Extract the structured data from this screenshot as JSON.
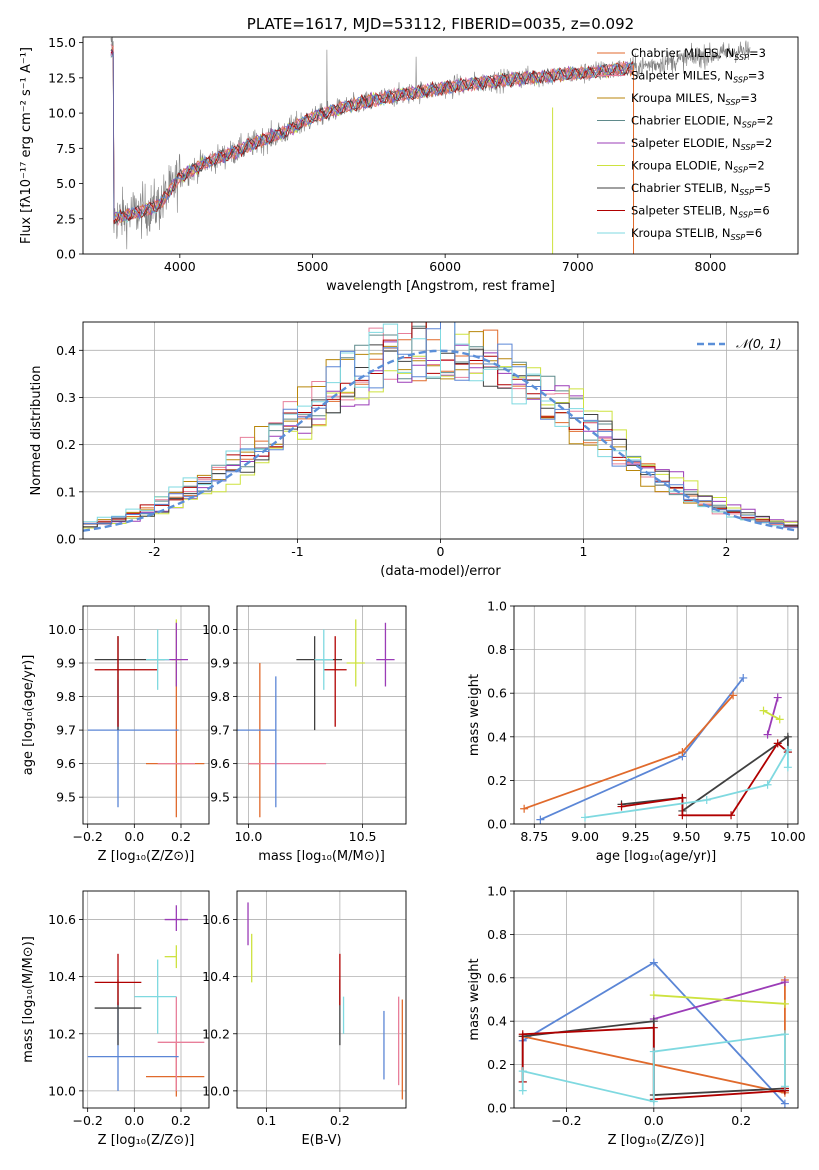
{
  "colors": {
    "chabrier_miles": "#e06a2c",
    "salpeter_miles": "#e87f9a",
    "kroupa_miles": "#b8860b",
    "chabrier_elodie": "#5f8a8b",
    "salpeter_elodie": "#9b3cb7",
    "kroupa_elodie": "#cde23f",
    "chabrier_stelib": "#404040",
    "salpeter_stelib": "#b00000",
    "kroupa_stelib": "#7fd9e0",
    "model_blue": "#5b86d6",
    "normal_curve": "#5b8fd8",
    "spectrum": "#808080",
    "grid": "#b0b0b0"
  },
  "chart_data": [
    {
      "id": "spectrum",
      "type": "line",
      "title": "PLATE=1617, MJD=53112, FIBERID=0035, z=0.092",
      "xlabel": "wavelength [Angstrom, rest frame]",
      "ylabel": "Flux [fλ10⁻¹⁷ erg cm⁻² s⁻¹ A⁻¹]",
      "xlim": [
        3270,
        8660
      ],
      "ylim": [
        0,
        15.4
      ],
      "xticks": [
        4000,
        5000,
        6000,
        7000,
        8000
      ],
      "yticks": [
        0.0,
        2.5,
        5.0,
        7.5,
        10.0,
        12.5,
        15.0
      ],
      "ytick_labels": [
        "0.0",
        "2.5",
        "5.0",
        "7.5",
        "10.0",
        "12.5",
        "15.0"
      ],
      "grid": false,
      "legend_position": "bottom-right",
      "legend": [
        {
          "label": "Chabrier MILES, N",
          "sub": "SSP",
          "suffix": "=3",
          "color_key": "chabrier_miles"
        },
        {
          "label": "Salpeter MILES, N",
          "sub": "SSP",
          "suffix": "=3",
          "color_key": "salpeter_miles"
        },
        {
          "label": "Kroupa MILES, N",
          "sub": "SSP",
          "suffix": "=3",
          "color_key": "kroupa_miles"
        },
        {
          "label": "Chabrier ELODIE, N",
          "sub": "SSP",
          "suffix": "=2",
          "color_key": "chabrier_elodie"
        },
        {
          "label": "Salpeter ELODIE, N",
          "sub": "SSP",
          "suffix": "=2",
          "color_key": "salpeter_elodie"
        },
        {
          "label": "Kroupa ELODIE, N",
          "sub": "SSP",
          "suffix": "=2",
          "color_key": "kroupa_elodie"
        },
        {
          "label": "Chabrier STELIB, N",
          "sub": "SSP",
          "suffix": "=5",
          "color_key": "chabrier_stelib"
        },
        {
          "label": "Salpeter STELIB, N",
          "sub": "SSP",
          "suffix": "=6",
          "color_key": "salpeter_stelib"
        },
        {
          "label": "Kroupa STELIB, N",
          "sub": "SSP",
          "suffix": "=6",
          "color_key": "kroupa_stelib"
        }
      ],
      "continuum": {
        "x": [
          3500,
          3700,
          3850,
          4000,
          4200,
          4400,
          4600,
          4800,
          5000,
          5200,
          5500,
          5800,
          6000,
          6300,
          6600,
          7000,
          7400,
          7800,
          8200
        ],
        "y": [
          2.5,
          3.0,
          3.5,
          5.5,
          6.5,
          7.2,
          8.0,
          8.7,
          9.7,
          10.3,
          11.0,
          11.5,
          11.8,
          12.2,
          12.5,
          12.8,
          13.2,
          13.8,
          14.4
        ]
      },
      "spectrum_range": [
        3480,
        8300
      ],
      "model_range": [
        3480,
        7420
      ]
    },
    {
      "id": "residuals",
      "type": "line",
      "xlabel": "(data-model)/error",
      "ylabel": "Normed distribution",
      "xlim": [
        -2.5,
        2.5
      ],
      "ylim": [
        0,
        0.46
      ],
      "xticks": [
        -2,
        -1,
        0,
        1,
        2
      ],
      "yticks": [
        0.0,
        0.1,
        0.2,
        0.3,
        0.4
      ],
      "ytick_labels": [
        "0.0",
        "0.1",
        "0.2",
        "0.3",
        "0.4"
      ],
      "grid": true,
      "legend_position": "top-right",
      "legend": [
        {
          "label": "𝒩(0, 1)",
          "color_key": "normal_curve",
          "dashed": true
        }
      ],
      "histogram_bin_width": 0.1
    },
    {
      "id": "age_vs_Z",
      "type": "scatter",
      "xlabel": "Z [log₁₀(Z/Z⊙)]",
      "ylabel": "age  [log₁₀(age/yr)]",
      "xlim": [
        -0.22,
        0.32
      ],
      "ylim": [
        9.42,
        10.07
      ],
      "xticks": [
        -0.2,
        0.0,
        0.2
      ],
      "xtick_labels": [
        "−0.2",
        "0.0",
        "0.2"
      ],
      "yticks": [
        9.5,
        9.6,
        9.7,
        9.8,
        9.9,
        10.0
      ],
      "ytick_labels": [
        "9.5",
        "9.6",
        "9.7",
        "9.8",
        "9.9",
        "10.0"
      ],
      "grid": true,
      "points": [
        {
          "x": 0.18,
          "y": 9.6,
          "xerr": [
            0.13,
            0.12
          ],
          "yerr": [
            0.16,
            0.3
          ],
          "color_key": "chabrier_miles"
        },
        {
          "x": 0.18,
          "y": 9.6,
          "xerr": [
            0.08,
            0.08
          ],
          "yerr": [
            0.0,
            0.0
          ],
          "color_key": "salpeter_miles"
        },
        {
          "x": -0.07,
          "y": 9.7,
          "xerr": [
            0.13,
            0.26
          ],
          "yerr": [
            0.23,
            0.15
          ],
          "color_key": "model_blue"
        },
        {
          "x": 0.18,
          "y": 9.91,
          "xerr": [
            0.02,
            0.02
          ],
          "yerr": [
            0.08,
            0.12
          ],
          "color_key": "kroupa_elodie"
        },
        {
          "x": 0.18,
          "y": 9.91,
          "xerr": [
            0.05,
            0.05
          ],
          "yerr": [
            0.08,
            0.11
          ],
          "color_key": "salpeter_elodie"
        },
        {
          "x": -0.07,
          "y": 9.91,
          "xerr": [
            0.1,
            0.2
          ],
          "yerr": [
            0.21,
            0.07
          ],
          "color_key": "chabrier_stelib"
        },
        {
          "x": -0.07,
          "y": 9.88,
          "xerr": [
            0.1,
            0.17
          ],
          "yerr": [
            0.17,
            0.1
          ],
          "color_key": "salpeter_stelib"
        },
        {
          "x": 0.1,
          "y": 9.91,
          "xerr": [
            0.05,
            0.05
          ],
          "yerr": [
            0.09,
            0.09
          ],
          "color_key": "kroupa_stelib"
        }
      ]
    },
    {
      "id": "age_vs_mass",
      "type": "scatter",
      "xlabel": "mass [log₁₀(M/M⊙)]",
      "ylabel": "",
      "xlim": [
        9.95,
        10.69
      ],
      "ylim": [
        9.42,
        10.07
      ],
      "xticks": [
        10.0,
        10.5
      ],
      "xtick_labels": [
        "10.0",
        "10.5"
      ],
      "yticks": [
        9.5,
        9.6,
        9.7,
        9.8,
        9.9,
        10.0
      ],
      "ytick_labels": [
        "9.5",
        "9.6",
        "9.7",
        "9.8",
        "9.9",
        "10.0"
      ],
      "grid": true,
      "points": [
        {
          "x": 10.05,
          "y": 9.6,
          "xerr": [
            0.05,
            0.0
          ],
          "yerr": [
            0.16,
            0.3
          ],
          "color_key": "chabrier_miles"
        },
        {
          "x": 10.17,
          "y": 9.6,
          "xerr": [
            0.17,
            0.17
          ],
          "yerr": [
            0.0,
            0.0
          ],
          "color_key": "salpeter_miles"
        },
        {
          "x": 10.12,
          "y": 9.7,
          "xerr": [
            0.17,
            0.0
          ],
          "yerr": [
            0.23,
            0.16
          ],
          "color_key": "model_blue"
        },
        {
          "x": 10.47,
          "y": 9.91,
          "xerr": [
            0.0,
            0.0
          ],
          "yerr": [
            0.08,
            0.12
          ],
          "color_key": "kroupa_elodie"
        },
        {
          "x": 10.6,
          "y": 9.91,
          "xerr": [
            0.04,
            0.04
          ],
          "yerr": [
            0.08,
            0.11
          ],
          "color_key": "salpeter_elodie"
        },
        {
          "x": 10.29,
          "y": 9.91,
          "xerr": [
            0.08,
            0.12
          ],
          "yerr": [
            0.21,
            0.07
          ],
          "color_key": "chabrier_stelib"
        },
        {
          "x": 10.38,
          "y": 9.88,
          "xerr": [
            0.05,
            0.05
          ],
          "yerr": [
            0.17,
            0.1
          ],
          "color_key": "salpeter_stelib"
        },
        {
          "x": 10.33,
          "y": 9.91,
          "xerr": [
            0.04,
            0.04
          ],
          "yerr": [
            0.09,
            0.09
          ],
          "color_key": "kroupa_stelib"
        },
        {
          "x": 10.47,
          "y": 9.9,
          "xerr": [
            0.04,
            0.04
          ],
          "yerr": [
            0.0,
            0.0
          ],
          "color_key": "kroupa_elodie"
        }
      ]
    },
    {
      "id": "mass_weight_vs_age",
      "type": "line",
      "xlabel": "age  [log₁₀(age/yr)]",
      "ylabel": "mass weight",
      "xlim": [
        8.65,
        10.05
      ],
      "ylim": [
        0,
        1.0
      ],
      "xticks": [
        8.75,
        9.0,
        9.25,
        9.5,
        9.75,
        10.0
      ],
      "xtick_labels": [
        "8.75",
        "9.00",
        "9.25",
        "9.50",
        "9.75",
        "10.00"
      ],
      "yticks": [
        0.0,
        0.2,
        0.4,
        0.6,
        0.8,
        1.0
      ],
      "ytick_labels": [
        "0.0",
        "0.2",
        "0.4",
        "0.6",
        "0.8",
        "1.0"
      ],
      "grid": true,
      "series": [
        {
          "color_key": "model_blue",
          "x": [
            8.78,
            9.48,
            9.78
          ],
          "y": [
            0.02,
            0.31,
            0.67
          ]
        },
        {
          "color_key": "chabrier_miles",
          "x": [
            8.7,
            9.48,
            9.73
          ],
          "y": [
            0.07,
            0.33,
            0.59
          ]
        },
        {
          "color_key": "salpeter_elodie",
          "x": [
            9.9,
            9.95
          ],
          "y": [
            0.41,
            0.58
          ]
        },
        {
          "color_key": "kroupa_elodie",
          "x": [
            9.88,
            9.96
          ],
          "y": [
            0.52,
            0.48
          ]
        },
        {
          "color_key": "chabrier_stelib",
          "x": [
            9.18,
            9.48,
            9.48,
            10.0,
            10.0
          ],
          "y": [
            0.09,
            0.12,
            0.06,
            0.4,
            0.33
          ]
        },
        {
          "color_key": "salpeter_stelib",
          "x": [
            9.18,
            9.48,
            9.48,
            9.72,
            9.95,
            10.0
          ],
          "y": [
            0.08,
            0.12,
            0.04,
            0.04,
            0.37,
            0.33
          ]
        },
        {
          "color_key": "kroupa_stelib",
          "x": [
            9.0,
            9.6,
            9.9,
            10.0,
            10.0
          ],
          "y": [
            0.03,
            0.11,
            0.18,
            0.34,
            0.26
          ]
        }
      ]
    },
    {
      "id": "mass_vs_Z",
      "type": "scatter",
      "xlabel": "Z [log₁₀(Z/Z⊙)]",
      "ylabel": "mass [log₁₀(M/M⊙)]",
      "xlim": [
        -0.22,
        0.32
      ],
      "ylim": [
        9.94,
        10.7
      ],
      "xticks": [
        -0.2,
        0.0,
        0.2
      ],
      "xtick_labels": [
        "−0.2",
        "0.0",
        "0.2"
      ],
      "yticks": [
        10.0,
        10.2,
        10.4,
        10.6
      ],
      "ytick_labels": [
        "10.0",
        "10.2",
        "10.4",
        "10.6"
      ],
      "grid": true,
      "points": [
        {
          "x": 0.18,
          "y": 10.05,
          "xerr": [
            0.13,
            0.12
          ],
          "yerr": [
            0.07,
            0.12
          ],
          "color_key": "chabrier_miles"
        },
        {
          "x": 0.18,
          "y": 10.17,
          "xerr": [
            0.08,
            0.12
          ],
          "yerr": [
            0.17,
            0.16
          ],
          "color_key": "salpeter_miles"
        },
        {
          "x": -0.07,
          "y": 10.12,
          "xerr": [
            0.13,
            0.26
          ],
          "yerr": [
            0.12,
            0.19
          ],
          "color_key": "model_blue"
        },
        {
          "x": 0.18,
          "y": 10.47,
          "xerr": [
            0.05,
            0.0
          ],
          "yerr": [
            0.04,
            0.04
          ],
          "color_key": "kroupa_elodie"
        },
        {
          "x": 0.18,
          "y": 10.6,
          "xerr": [
            0.05,
            0.05
          ],
          "yerr": [
            0.04,
            0.05
          ],
          "color_key": "salpeter_elodie"
        },
        {
          "x": -0.07,
          "y": 10.29,
          "xerr": [
            0.1,
            0.1
          ],
          "yerr": [
            0.13,
            0.1
          ],
          "color_key": "chabrier_stelib"
        },
        {
          "x": -0.07,
          "y": 10.38,
          "xerr": [
            0.1,
            0.1
          ],
          "yerr": [
            0.08,
            0.1
          ],
          "color_key": "salpeter_stelib"
        },
        {
          "x": 0.1,
          "y": 10.33,
          "xerr": [
            0.1,
            0.08
          ],
          "yerr": [
            0.13,
            0.13
          ],
          "color_key": "kroupa_stelib"
        }
      ]
    },
    {
      "id": "mass_vs_ebv",
      "type": "scatter",
      "xlabel": "E(B-V)",
      "ylabel": "",
      "xlim": [
        0.06,
        0.29
      ],
      "ylim": [
        9.94,
        10.7
      ],
      "xticks": [
        0.1,
        0.2
      ],
      "xtick_labels": [
        "0.1",
        "0.2"
      ],
      "yticks": [
        10.0,
        10.2,
        10.4,
        10.6
      ],
      "ytick_labels": [
        "10.0",
        "10.2",
        "10.4",
        "10.6"
      ],
      "grid": true,
      "points": [
        {
          "x": 0.285,
          "y": 10.05,
          "xerr": [
            0,
            0
          ],
          "yerr": [
            0.08,
            0.27
          ],
          "color_key": "chabrier_miles"
        },
        {
          "x": 0.28,
          "y": 10.17,
          "xerr": [
            0,
            0
          ],
          "yerr": [
            0.15,
            0.16
          ],
          "color_key": "salpeter_miles"
        },
        {
          "x": 0.26,
          "y": 10.12,
          "xerr": [
            0,
            0
          ],
          "yerr": [
            0.08,
            0.16
          ],
          "color_key": "model_blue"
        },
        {
          "x": 0.08,
          "y": 10.47,
          "xerr": [
            0,
            0
          ],
          "yerr": [
            0.09,
            0.08
          ],
          "color_key": "kroupa_elodie"
        },
        {
          "x": 0.075,
          "y": 10.6,
          "xerr": [
            0,
            0
          ],
          "yerr": [
            0.09,
            0.06
          ],
          "color_key": "salpeter_elodie"
        },
        {
          "x": 0.2,
          "y": 10.29,
          "xerr": [
            0,
            0
          ],
          "yerr": [
            0.13,
            0.1
          ],
          "color_key": "chabrier_stelib"
        },
        {
          "x": 0.2,
          "y": 10.38,
          "xerr": [
            0,
            0
          ],
          "yerr": [
            0.08,
            0.1
          ],
          "color_key": "salpeter_stelib"
        },
        {
          "x": 0.205,
          "y": 10.25,
          "xerr": [
            0,
            0
          ],
          "yerr": [
            0.05,
            0.08
          ],
          "color_key": "kroupa_stelib"
        }
      ]
    },
    {
      "id": "mass_weight_vs_Z",
      "type": "line",
      "xlabel": "Z [log₁₀(Z/Z⊙)]",
      "ylabel": "mass weight",
      "xlim": [
        -0.32,
        0.33
      ],
      "ylim": [
        0,
        1.0
      ],
      "xticks": [
        -0.2,
        0.0,
        0.2
      ],
      "xtick_labels": [
        "−0.2",
        "0.0",
        "0.2"
      ],
      "yticks": [
        0.0,
        0.2,
        0.4,
        0.6,
        0.8,
        1.0
      ],
      "ytick_labels": [
        "0.0",
        "0.2",
        "0.4",
        "0.6",
        "0.8",
        "1.0"
      ],
      "grid": true,
      "series": [
        {
          "color_key": "model_blue",
          "x": [
            -0.3,
            0.0,
            0.3
          ],
          "y": [
            0.31,
            0.67,
            0.02
          ]
        },
        {
          "color_key": "chabrier_miles",
          "x": [
            -0.3,
            0.3,
            0.3
          ],
          "y": [
            0.33,
            0.07,
            0.59
          ]
        },
        {
          "color_key": "salpeter_elodie",
          "x": [
            0.0,
            0.3
          ],
          "y": [
            0.41,
            0.58
          ]
        },
        {
          "color_key": "kroupa_elodie",
          "x": [
            0.0,
            0.3
          ],
          "y": [
            0.52,
            0.48
          ]
        },
        {
          "color_key": "chabrier_stelib",
          "x": [
            -0.3,
            -0.3,
            0.0,
            0.0,
            0.3,
            0.3
          ],
          "y": [
            0.12,
            0.33,
            0.4,
            0.06,
            0.09,
            0.08
          ]
        },
        {
          "color_key": "salpeter_stelib",
          "x": [
            -0.3,
            -0.3,
            0.0,
            0.0,
            0.3,
            0.3
          ],
          "y": [
            0.12,
            0.34,
            0.37,
            0.04,
            0.08,
            0.09
          ]
        },
        {
          "color_key": "kroupa_stelib",
          "x": [
            -0.3,
            -0.3,
            0.0,
            0.0,
            0.3,
            0.3
          ],
          "y": [
            0.08,
            0.17,
            0.03,
            0.26,
            0.34,
            0.1
          ]
        }
      ]
    }
  ]
}
